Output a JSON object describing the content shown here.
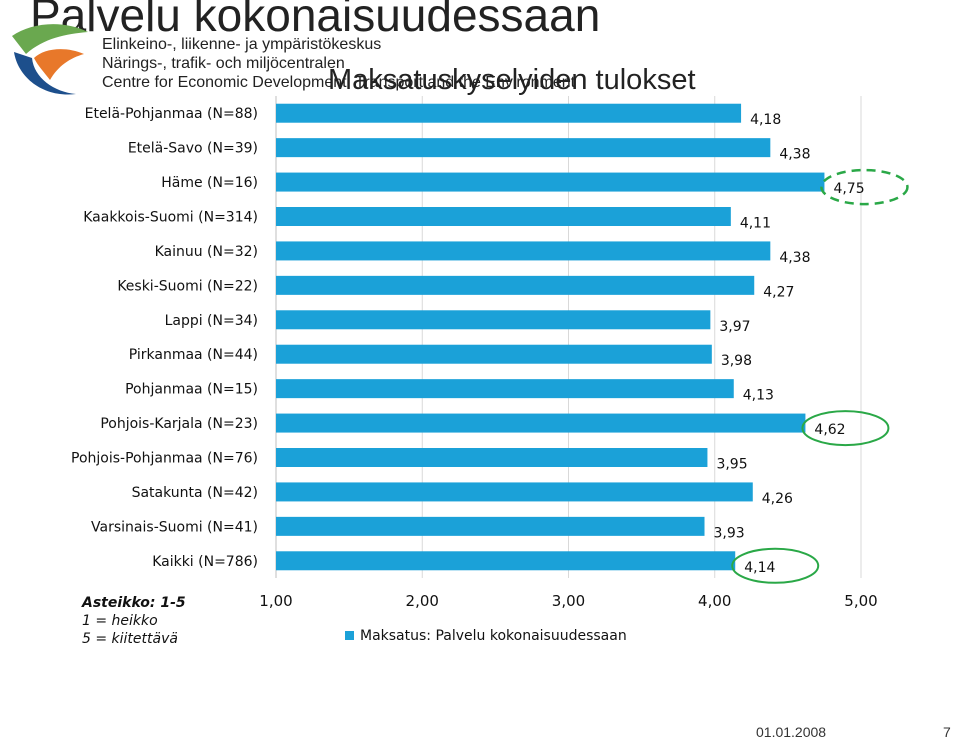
{
  "header": {
    "title": "Palvelu kokonaisuudessaan",
    "org_lines": [
      "Elinkeino-, liikenne- ja ympäristökeskus",
      "Närings-, trafik- och miljöcentralen",
      "Centre for Economic Development, Transport and the Environment"
    ],
    "subtitle": "Maksatuskyselyiden tulokset"
  },
  "scale_note": {
    "title": "Asteikko: 1-5",
    "line1": "1 = heikko",
    "line2": "5 = kiitettävä"
  },
  "footer": {
    "date": "01.01.2008",
    "page": "7"
  },
  "colors": {
    "bar": "#1BA1D8",
    "highlight_solid": "#2AA847",
    "highlight_dashed": "#2AA847"
  },
  "chart_data": {
    "type": "bar",
    "orientation": "horizontal",
    "categories": [
      "Etelä-Pohjanmaa (N=88)",
      "Etelä-Savo (N=39)",
      "Häme (N=16)",
      "Kaakkois-Suomi (N=314)",
      "Kainuu (N=32)",
      "Keski-Suomi (N=22)",
      "Lappi (N=34)",
      "Pirkanmaa (N=44)",
      "Pohjanmaa (N=15)",
      "Pohjois-Karjala (N=23)",
      "Pohjois-Pohjanmaa (N=76)",
      "Satakunta (N=42)",
      "Varsinais-Suomi (N=41)",
      "Kaikki (N=786)"
    ],
    "values": [
      4.18,
      4.38,
      4.75,
      4.11,
      4.38,
      4.27,
      3.97,
      3.98,
      4.13,
      4.62,
      3.95,
      4.26,
      3.93,
      4.14
    ],
    "value_labels": [
      "4,18",
      "4,38",
      "4,75",
      "4,11",
      "4,38",
      "4,27",
      "3,97",
      "3,98",
      "4,13",
      "4,62",
      "3,95",
      "4,26",
      "3,93",
      "4,14"
    ],
    "series": [
      {
        "name": "Maksatus: Palvelu kokonaisuudessaan"
      }
    ],
    "xlim": [
      1,
      5
    ],
    "xticks": [
      "1,00",
      "2,00",
      "3,00",
      "4,00",
      "5,00"
    ],
    "grid": true,
    "legend": "bottom",
    "highlights": [
      {
        "category": "Häme (N=16)",
        "style": "dashed"
      },
      {
        "category": "Pohjois-Karjala (N=23)",
        "style": "solid"
      },
      {
        "category": "Kaikki (N=786)",
        "style": "solid"
      }
    ]
  }
}
